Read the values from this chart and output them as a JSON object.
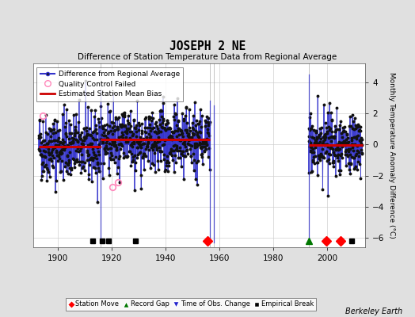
{
  "title": "JOSEPH 2 NE",
  "subtitle": "Difference of Station Temperature Data from Regional Average",
  "ylabel": "Monthly Temperature Anomaly Difference (°C)",
  "credit": "Berkeley Earth",
  "xlim": [
    1891,
    2014
  ],
  "ylim": [
    -6.6,
    5.2
  ],
  "yticks": [
    -6,
    -4,
    -2,
    0,
    2,
    4
  ],
  "xticks": [
    1900,
    1920,
    1940,
    1960,
    1980,
    2000
  ],
  "bg_color": "#e0e0e0",
  "plot_bg_color": "#ffffff",
  "line_color": "#3333cc",
  "marker_color": "#111111",
  "bias_color": "#cc0000",
  "qc_color": "#ff88bb",
  "seed": 42,
  "data_segments": [
    {
      "start": 1893,
      "end": 1916,
      "mean": -0.15,
      "std": 1.1
    },
    {
      "start": 1916,
      "end": 1956.5,
      "mean": 0.3,
      "std": 1.05
    },
    {
      "start": 1993,
      "end": 2013,
      "mean": -0.05,
      "std": 0.95
    }
  ],
  "bias_segments": [
    {
      "start": 1893,
      "end": 1916,
      "value": -0.15
    },
    {
      "start": 1916,
      "end": 1956.5,
      "value": 0.3
    },
    {
      "start": 1993,
      "end": 2013,
      "value": -0.05
    }
  ],
  "gap_verticals": [
    {
      "x": 1916,
      "y_top": 3.5,
      "y_bot": -6.3
    },
    {
      "x": 1956.5,
      "y_top": 2.8,
      "y_bot": -6.3
    },
    {
      "x": 1958,
      "y_top": 2.5,
      "y_bot": -6.3
    },
    {
      "x": 1993,
      "y_top": 4.5,
      "y_bot": -6.3
    }
  ],
  "qc_failed": [
    {
      "year": 1894.5,
      "val": 1.85
    },
    {
      "year": 1920.3,
      "val": -2.75
    },
    {
      "year": 1922.5,
      "val": -2.45
    }
  ],
  "station_moves": [
    1955.5
  ],
  "record_gaps": [
    1993.0
  ],
  "obs_changes": [],
  "empirical_breaks": [
    1913.0,
    1916.5,
    1919.0,
    1929.0,
    1999.5,
    2005.0,
    2009.0
  ],
  "bottom_markers_y": -6.2,
  "axvline_color": "#888888",
  "axvline_positions": [
    1916,
    1956.5,
    1958,
    1993
  ]
}
